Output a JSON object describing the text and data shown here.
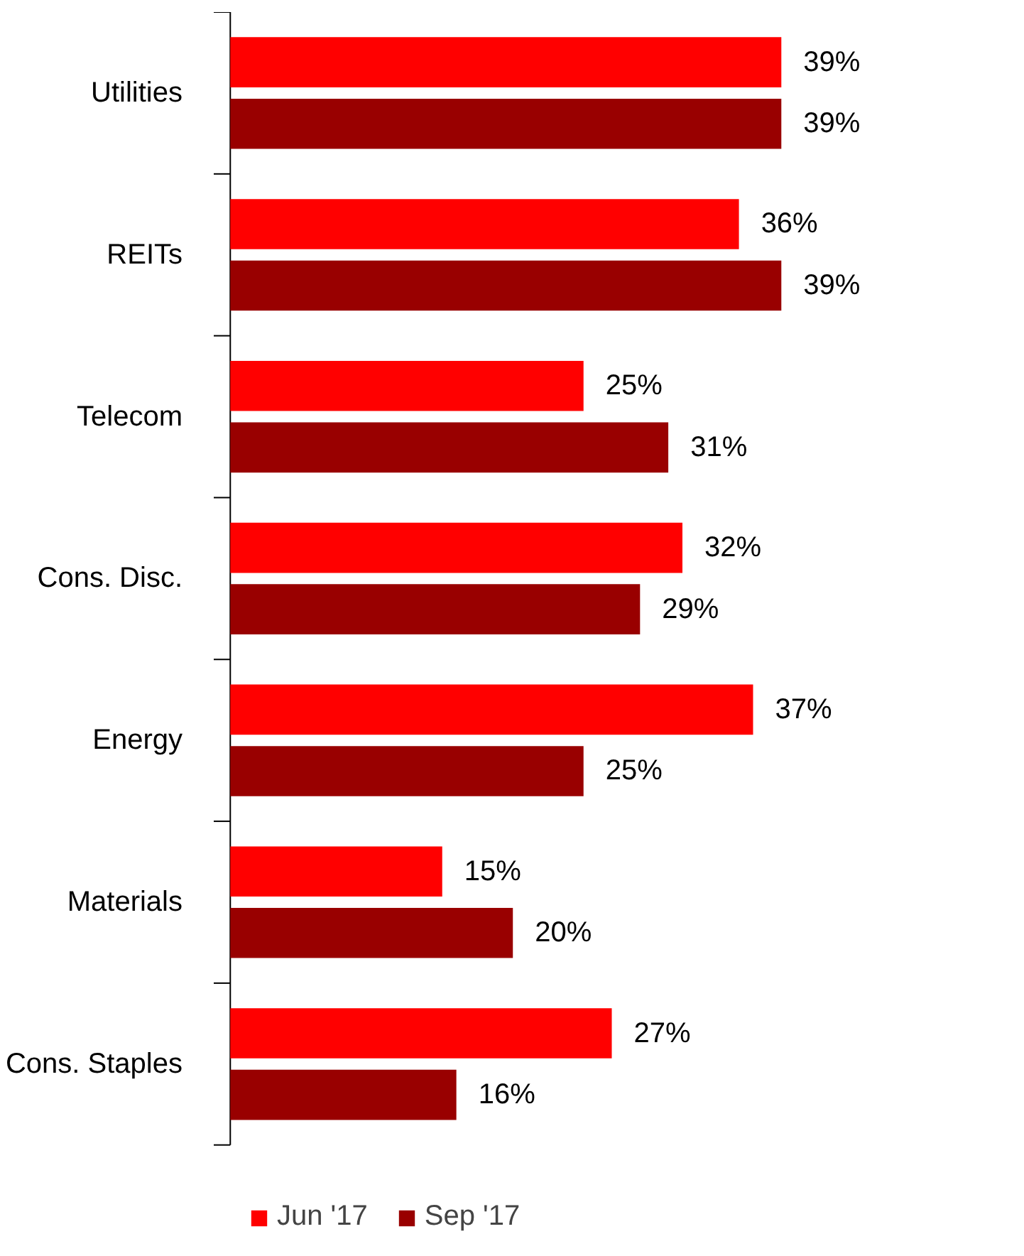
{
  "chart_data": {
    "type": "bar",
    "orientation": "horizontal",
    "categories": [
      "Utilities",
      "REITs",
      "Telecom",
      "Cons. Disc.",
      "Energy",
      "Materials",
      "Cons. Staples"
    ],
    "series": [
      {
        "name": "Jun '17",
        "color": "#ff0000",
        "values": [
          39,
          36,
          25,
          32,
          37,
          15,
          27
        ],
        "value_labels": [
          "39%",
          "36%",
          "25%",
          "32%",
          "37%",
          "15%",
          "27%"
        ]
      },
      {
        "name": "Sep '17",
        "color": "#990000",
        "values": [
          39,
          39,
          31,
          29,
          25,
          20,
          16
        ],
        "value_labels": [
          "39%",
          "39%",
          "31%",
          "29%",
          "25%",
          "20%",
          "16%"
        ]
      }
    ],
    "tick_labels": "y",
    "grid": false,
    "legend": "bottom"
  }
}
